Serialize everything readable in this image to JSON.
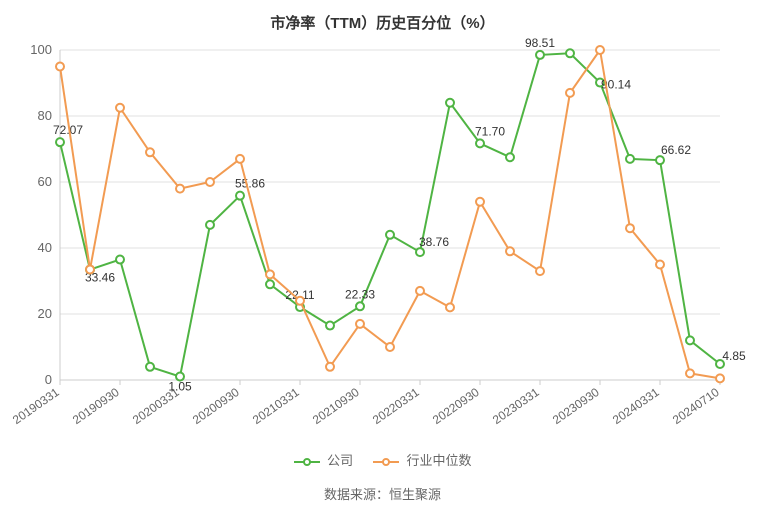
{
  "chart": {
    "type": "line",
    "title": "市净率（TTM）历史百分位（%）",
    "background_color": "#ffffff",
    "grid_color": "#e0e0e0",
    "axis_color": "#cccccc",
    "text_color": "#666666",
    "title_color": "#333333",
    "title_fontsize": 15,
    "tick_fontsize": 13,
    "xtick_fontsize": 12,
    "label_fontsize": 12,
    "ylim": [
      0,
      100
    ],
    "ytick_step": 20,
    "yticks": [
      0,
      20,
      40,
      60,
      80,
      100
    ],
    "x_categories": [
      "20190331",
      "20190630",
      "20190930",
      "20191231",
      "20200331",
      "20200630",
      "20200930",
      "20201231",
      "20210331",
      "20210630",
      "20210930",
      "20211231",
      "20220331",
      "20220630",
      "20220930",
      "20221231",
      "20230331",
      "20230630",
      "20230930",
      "20231231",
      "20240331",
      "20240630",
      "20240710"
    ],
    "x_tick_labels": [
      "20190331",
      "20190930",
      "20200331",
      "20200930",
      "20210331",
      "20210930",
      "20220331",
      "20220930",
      "20230331",
      "20230930",
      "20240331",
      "20240710"
    ],
    "x_tick_indices": [
      0,
      2,
      4,
      6,
      8,
      10,
      12,
      14,
      16,
      18,
      20,
      22
    ],
    "x_label_rotate_deg": -35,
    "line_width": 2,
    "marker_style": "circle",
    "marker_size": 4,
    "marker_fill": "#ffffff",
    "series": [
      {
        "name": "公司",
        "color": "#4fb443",
        "values": [
          72.07,
          33.46,
          36.5,
          4.0,
          1.05,
          47.0,
          55.86,
          29.0,
          22.11,
          16.5,
          22.33,
          44.0,
          38.76,
          84.0,
          71.7,
          67.5,
          98.51,
          99.0,
          90.14,
          67.0,
          66.62,
          12.0,
          4.85
        ],
        "data_labels": [
          {
            "i": 0,
            "text": "72.07",
            "dx": 8,
            "dy": -8
          },
          {
            "i": 1,
            "text": "33.46",
            "dx": 10,
            "dy": 12
          },
          {
            "i": 4,
            "text": "1.05",
            "dx": 0,
            "dy": 14
          },
          {
            "i": 6,
            "text": "55.86",
            "dx": 10,
            "dy": -8
          },
          {
            "i": 8,
            "text": "22.11",
            "dx": 0,
            "dy": -8
          },
          {
            "i": 10,
            "text": "22.33",
            "dx": 0,
            "dy": -8
          },
          {
            "i": 12,
            "text": "38.76",
            "dx": 14,
            "dy": -6
          },
          {
            "i": 14,
            "text": "71.70",
            "dx": 10,
            "dy": -8
          },
          {
            "i": 16,
            "text": "98.51",
            "dx": 0,
            "dy": -8
          },
          {
            "i": 18,
            "text": "90.14",
            "dx": 16,
            "dy": 6
          },
          {
            "i": 20,
            "text": "66.62",
            "dx": 16,
            "dy": -6
          },
          {
            "i": 22,
            "text": "4.85",
            "dx": 14,
            "dy": -4
          }
        ]
      },
      {
        "name": "行业中位数",
        "color": "#f29b52",
        "values": [
          95.0,
          33.5,
          82.5,
          69.0,
          58.0,
          60.0,
          67.0,
          32.0,
          24.0,
          4.0,
          17.0,
          10.0,
          27.0,
          22.0,
          54.0,
          39.0,
          33.0,
          87.0,
          100.0,
          46.0,
          35.0,
          2.0,
          0.5
        ],
        "data_labels": []
      }
    ],
    "legend": {
      "position": "bottom-center",
      "items": [
        {
          "label": "公司",
          "color": "#4fb443"
        },
        {
          "label": "行业中位数",
          "color": "#f29b52"
        }
      ]
    },
    "source_label": "数据来源：恒生聚源"
  }
}
